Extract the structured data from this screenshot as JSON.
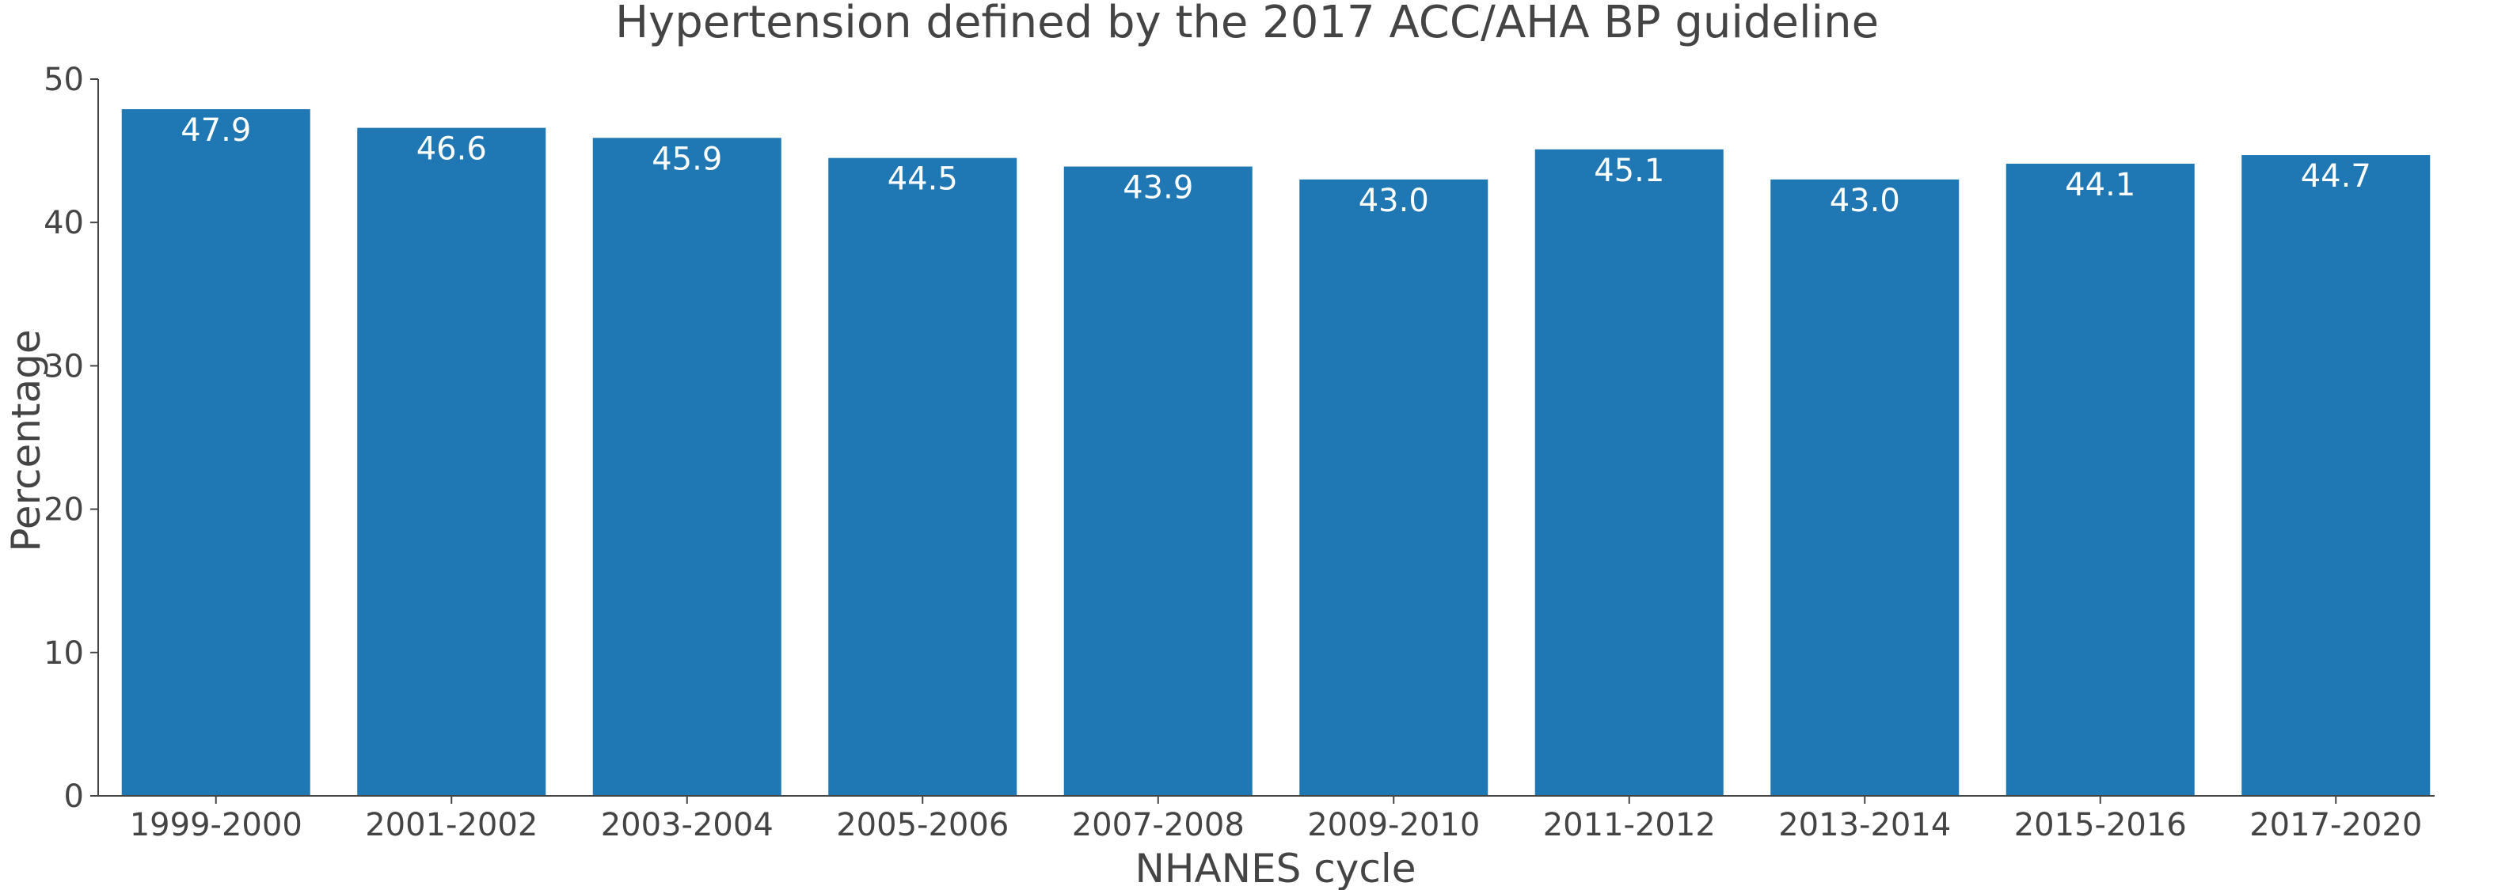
{
  "chart_data": {
    "type": "bar",
    "title": "Hypertension defined by the 2017 ACC/AHA BP guideline",
    "xlabel": "NHANES cycle",
    "ylabel": "Percentage",
    "categories": [
      "1999-2000",
      "2001-2002",
      "2003-2004",
      "2005-2006",
      "2007-2008",
      "2009-2010",
      "2011-2012",
      "2013-2014",
      "2015-2016",
      "2017-2020"
    ],
    "values": [
      47.9,
      46.6,
      45.9,
      44.5,
      43.9,
      43.0,
      45.1,
      43.0,
      44.1,
      44.7
    ],
    "data_labels": [
      "47.9",
      "46.6",
      "45.9",
      "44.5",
      "43.9",
      "43.0",
      "45.1",
      "43.0",
      "44.1",
      "44.7"
    ],
    "ylim": [
      0,
      50
    ],
    "yticks": [
      0,
      10,
      20,
      30,
      40,
      50
    ],
    "grid": false,
    "bar_color": "#1f77b4"
  }
}
